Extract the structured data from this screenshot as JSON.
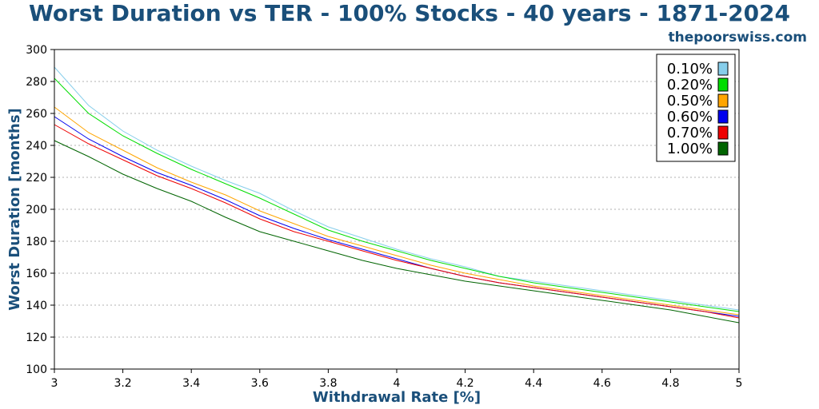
{
  "header": {
    "title": "Worst Duration vs TER - 100% Stocks - 40 years - 1871-2024",
    "site": "thepoorswiss.com"
  },
  "chart_data": {
    "type": "line",
    "title": "Worst Duration vs TER - 100% Stocks - 40 years - 1871-2024",
    "xlabel": "Withdrawal Rate [%]",
    "ylabel": "Worst Duration [months]",
    "xlim": [
      3,
      5
    ],
    "ylim": [
      100,
      300
    ],
    "xticks": [
      3,
      3.2,
      3.4,
      3.6,
      3.8,
      4,
      4.2,
      4.4,
      4.6,
      4.8,
      5
    ],
    "xtick_labels": [
      "3",
      "3.2",
      "3.4",
      "3.6",
      "3.8",
      "4",
      "4.2",
      "4.4",
      "4.6",
      "4.8",
      "5"
    ],
    "yticks": [
      100,
      120,
      140,
      160,
      180,
      200,
      220,
      240,
      260,
      280,
      300
    ],
    "ytick_labels": [
      "100",
      "120",
      "140",
      "160",
      "180",
      "200",
      "220",
      "240",
      "260",
      "280",
      "300"
    ],
    "grid": "horizontal dotted",
    "legend_position": "top-right",
    "x": [
      3.0,
      3.1,
      3.2,
      3.3,
      3.4,
      3.5,
      3.6,
      3.7,
      3.8,
      3.9,
      4.0,
      4.1,
      4.2,
      4.3,
      4.4,
      4.5,
      4.6,
      4.7,
      4.8,
      4.9,
      5.0
    ],
    "series": [
      {
        "name": "0.10%",
        "color": "#87ceeb",
        "values": [
          289,
          265,
          249,
          237,
          227,
          218,
          210,
          199,
          189,
          182,
          175,
          169,
          164,
          158,
          155,
          152,
          149,
          146,
          143,
          140,
          137
        ]
      },
      {
        "name": "0.20%",
        "color": "#00dd00",
        "values": [
          282,
          260,
          246,
          235,
          225,
          216,
          207,
          197,
          187,
          180,
          174,
          168,
          163,
          158,
          154,
          151,
          148,
          145,
          142,
          139,
          136
        ]
      },
      {
        "name": "0.50%",
        "color": "#ffa500",
        "values": [
          264,
          248,
          237,
          226,
          217,
          209,
          199,
          191,
          183,
          177,
          171,
          165,
          160,
          156,
          152,
          149,
          146,
          143,
          140,
          137,
          134
        ]
      },
      {
        "name": "0.60%",
        "color": "#0000ee",
        "values": [
          258,
          244,
          233,
          223,
          215,
          206,
          196,
          188,
          181,
          175,
          169,
          163,
          158,
          154,
          151,
          148,
          145,
          142,
          139,
          136,
          133
        ]
      },
      {
        "name": "0.70%",
        "color": "#ee0000",
        "values": [
          253,
          241,
          231,
          221,
          213,
          204,
          194,
          186,
          180,
          174,
          168,
          163,
          158,
          154,
          151,
          148,
          145,
          142,
          139,
          136,
          132
        ]
      },
      {
        "name": "1.00%",
        "color": "#006400",
        "values": [
          243,
          233,
          222,
          213,
          205,
          195,
          186,
          180,
          174,
          168,
          163,
          159,
          155,
          152,
          149,
          146,
          143,
          140,
          137,
          133,
          129
        ]
      }
    ]
  }
}
